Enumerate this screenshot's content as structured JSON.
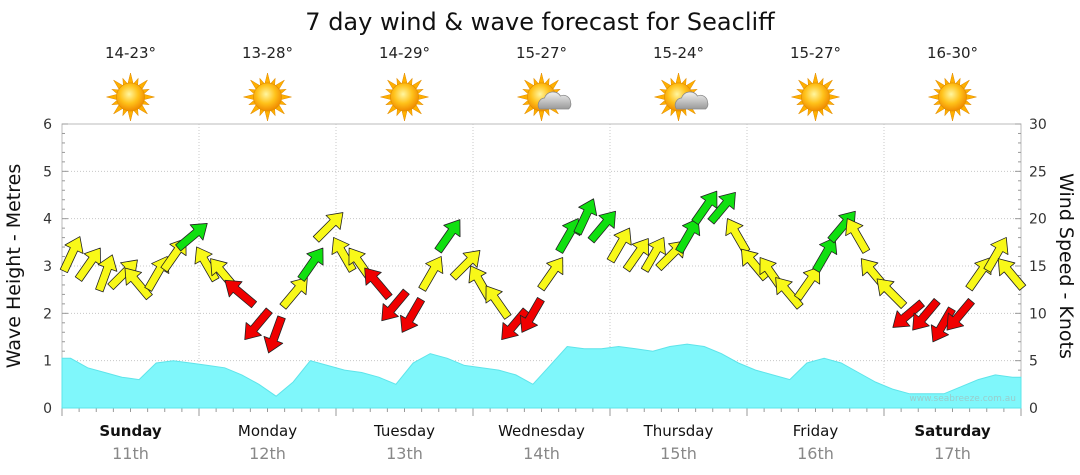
{
  "chart_data": {
    "type": "line",
    "title": "7 day wind & wave forecast for Seacliff",
    "ylabel_left": "Wave Height - Metres",
    "ylabel_right": "Wind Speed - Knots",
    "ylim_left": [
      0,
      6
    ],
    "ylim_right": [
      0,
      30
    ],
    "yticks_left": [
      "0",
      "1",
      "2",
      "3",
      "4",
      "5",
      "6"
    ],
    "yticks_right": [
      "0",
      "5",
      "10",
      "15",
      "20",
      "25",
      "30"
    ],
    "credit": "www.seabreeze.com.au",
    "days": [
      {
        "name": "Sunday",
        "date": "11th",
        "temp": "14-23°",
        "icon": "sun-icon",
        "bold": true
      },
      {
        "name": "Monday",
        "date": "12th",
        "temp": "13-28°",
        "icon": "sun-icon",
        "bold": false
      },
      {
        "name": "Tuesday",
        "date": "13th",
        "temp": "14-29°",
        "icon": "sun-icon",
        "bold": false
      },
      {
        "name": "Wednesday",
        "date": "14th",
        "temp": "15-27°",
        "icon": "partly-cloudy-icon",
        "bold": false
      },
      {
        "name": "Thursday",
        "date": "15th",
        "temp": "15-24°",
        "icon": "partly-cloudy-icon",
        "bold": false
      },
      {
        "name": "Friday",
        "date": "16th",
        "temp": "15-27°",
        "icon": "sun-icon",
        "bold": false
      },
      {
        "name": "Saturday",
        "date": "17th",
        "temp": "16-30°",
        "icon": "sun-icon",
        "bold": true
      }
    ],
    "series": [
      {
        "name": "Wave Height (m)",
        "type": "area",
        "color": "#7ff7fb",
        "points_per_day": 8,
        "values": [
          1.05,
          0.85,
          0.75,
          0.65,
          0.6,
          0.95,
          1.0,
          0.95,
          0.9,
          0.85,
          0.7,
          0.5,
          0.25,
          0.55,
          1.0,
          0.9,
          0.8,
          0.75,
          0.65,
          0.5,
          0.95,
          1.15,
          1.05,
          0.9,
          0.85,
          0.8,
          0.7,
          0.5,
          0.9,
          1.3,
          1.25,
          1.25,
          1.3,
          1.25,
          1.2,
          1.3,
          1.35,
          1.3,
          1.15,
          0.95,
          0.8,
          0.7,
          0.6,
          0.95,
          1.05,
          0.95,
          0.75,
          0.55,
          0.4,
          0.3,
          0.3,
          0.3,
          0.45,
          0.6,
          0.7,
          0.65
        ]
      },
      {
        "name": "Wind Speed (knots)",
        "type": "arrows",
        "points_per_day": 8,
        "colors": {
          "light": "#10e010",
          "moderate": "#f8f818",
          "strong": "#f00000"
        },
        "values": [
          16,
          15,
          14,
          14,
          13,
          14,
          16,
          18,
          15,
          14,
          12,
          9,
          8,
          12,
          15,
          19,
          16,
          15,
          13,
          11,
          10,
          14,
          18,
          15,
          13,
          11,
          9,
          10,
          14,
          18,
          20,
          19,
          17,
          16,
          16,
          16,
          18,
          21,
          21,
          18,
          15,
          14,
          12,
          13,
          16,
          19,
          18,
          14,
          12,
          10,
          10,
          9,
          10,
          14,
          16,
          14
        ],
        "arrow_angles": [
          25,
          35,
          20,
          45,
          -40,
          30,
          35,
          50,
          -30,
          -40,
          -50,
          -140,
          -160,
          40,
          35,
          45,
          -30,
          -35,
          -40,
          -140,
          -150,
          30,
          35,
          45,
          -30,
          -35,
          -140,
          -150,
          35,
          30,
          25,
          40,
          30,
          35,
          30,
          45,
          30,
          35,
          40,
          -30,
          -40,
          -35,
          -40,
          35,
          30,
          40,
          -30,
          -40,
          -45,
          -130,
          -140,
          -150,
          -140,
          35,
          30,
          -40
        ],
        "classes": [
          "m",
          "m",
          "m",
          "m",
          "m",
          "m",
          "m",
          "l",
          "m",
          "m",
          "s",
          "s",
          "s",
          "m",
          "l",
          "m",
          "m",
          "m",
          "s",
          "s",
          "s",
          "m",
          "l",
          "m",
          "m",
          "m",
          "s",
          "s",
          "m",
          "l",
          "l",
          "l",
          "m",
          "m",
          "m",
          "m",
          "l",
          "l",
          "l",
          "m",
          "m",
          "m",
          "m",
          "m",
          "l",
          "l",
          "m",
          "m",
          "m",
          "s",
          "s",
          "s",
          "s",
          "m",
          "m",
          "m"
        ]
      }
    ]
  }
}
